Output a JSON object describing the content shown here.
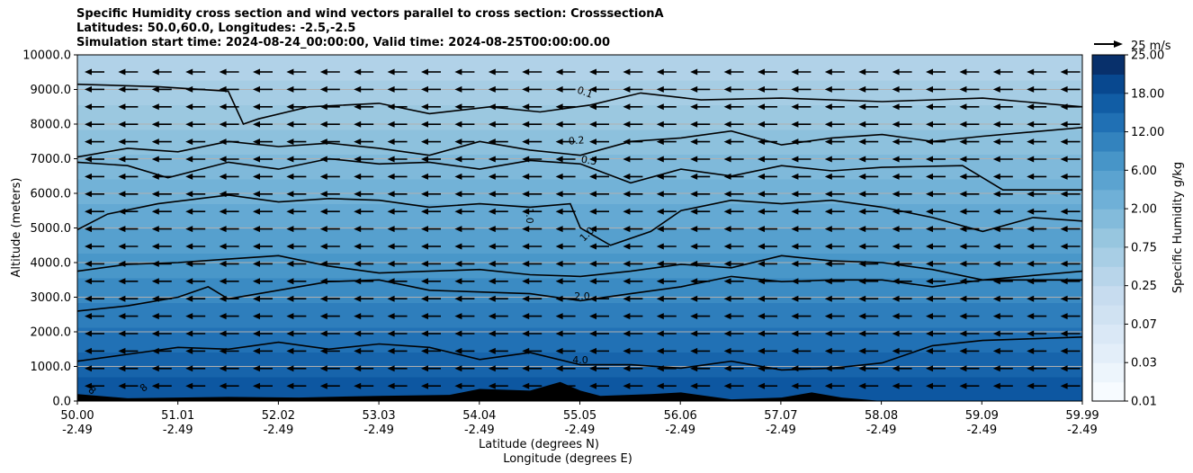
{
  "chart_data": {
    "type": "contour",
    "title_lines": [
      "Specific Humidity cross section and wind vectors parallel to cross section: CrosssectionA",
      "Latitudes: 50.0,60.0, Longitudes: -2.5,-2.5",
      "Simulation start time: 2024-08-24_00:00:00, Valid time: 2024-08-25T00:00:00.00"
    ],
    "ylabel": "Altitude (meters)",
    "xlabel_lat": "Latitude (degrees N)",
    "xlabel_lon": "Longitude (degrees E)",
    "ylim": [
      0,
      10000
    ],
    "xlim": [
      50.0,
      59.99
    ],
    "y_ticks": [
      "0.0",
      "1000.0",
      "2000.0",
      "3000.0",
      "4000.0",
      "5000.0",
      "6000.0",
      "7000.0",
      "8000.0",
      "9000.0",
      "10000.0"
    ],
    "x_ticks": [
      {
        "lat": "50.00",
        "lon": "-2.49"
      },
      {
        "lat": "51.01",
        "lon": "-2.49"
      },
      {
        "lat": "52.02",
        "lon": "-2.49"
      },
      {
        "lat": "53.03",
        "lon": "-2.49"
      },
      {
        "lat": "54.04",
        "lon": "-2.49"
      },
      {
        "lat": "55.05",
        "lon": "-2.49"
      },
      {
        "lat": "56.06",
        "lon": "-2.49"
      },
      {
        "lat": "57.07",
        "lon": "-2.49"
      },
      {
        "lat": "58.08",
        "lon": "-2.49"
      },
      {
        "lat": "59.09",
        "lon": "-2.49"
      },
      {
        "lat": "59.99",
        "lon": "-2.49"
      }
    ],
    "colorbar": {
      "label": "Specific Humidity g/kg",
      "tick_labels": [
        "0.01",
        "0.03",
        "0.07",
        "0.25",
        "0.75",
        "2.00",
        "6.00",
        "12.00",
        "18.00",
        "25.00"
      ],
      "n_levels": 18,
      "color_low": "#f7fbff",
      "color_high": "#08306b"
    },
    "contour_labels": [
      "0.1",
      "0.2",
      "0.5",
      "1.0",
      "1.0",
      "2.0",
      "4.0",
      "8",
      "8"
    ],
    "contours": [
      {
        "label": "0.1",
        "points": [
          [
            50.0,
            9150
          ],
          [
            50.8,
            9080
          ],
          [
            51.5,
            8950
          ],
          [
            51.65,
            8000
          ],
          [
            51.8,
            8150
          ],
          [
            52.3,
            8500
          ],
          [
            53.0,
            8600
          ],
          [
            53.5,
            8300
          ],
          [
            54.1,
            8500
          ],
          [
            54.6,
            8350
          ],
          [
            55.1,
            8550
          ],
          [
            55.6,
            8900
          ],
          [
            56.2,
            8700
          ],
          [
            57.0,
            8750
          ],
          [
            58.0,
            8650
          ],
          [
            59.0,
            8750
          ],
          [
            59.99,
            8500
          ]
        ]
      },
      {
        "label": "0.2",
        "points": [
          [
            50.0,
            7050
          ],
          [
            50.5,
            7300
          ],
          [
            51.0,
            7200
          ],
          [
            51.5,
            7500
          ],
          [
            52.0,
            7350
          ],
          [
            52.5,
            7450
          ],
          [
            53.0,
            7300
          ],
          [
            53.5,
            7100
          ],
          [
            54.0,
            7500
          ],
          [
            54.5,
            7250
          ],
          [
            55.0,
            7100
          ],
          [
            55.5,
            7500
          ],
          [
            56.0,
            7600
          ],
          [
            56.5,
            7800
          ],
          [
            57.0,
            7400
          ],
          [
            57.5,
            7600
          ],
          [
            58.0,
            7700
          ],
          [
            58.5,
            7500
          ],
          [
            59.0,
            7650
          ],
          [
            59.99,
            7900
          ]
        ]
      },
      {
        "label": "0.5",
        "points": [
          [
            50.0,
            6900
          ],
          [
            50.5,
            6800
          ],
          [
            50.9,
            6450
          ],
          [
            51.5,
            6900
          ],
          [
            52.0,
            6700
          ],
          [
            52.5,
            7000
          ],
          [
            53.0,
            6850
          ],
          [
            53.5,
            6900
          ],
          [
            54.0,
            6700
          ],
          [
            54.5,
            6950
          ],
          [
            55.0,
            6850
          ],
          [
            55.5,
            6300
          ],
          [
            56.0,
            6700
          ],
          [
            56.5,
            6500
          ],
          [
            57.0,
            6800
          ],
          [
            57.5,
            6650
          ],
          [
            58.0,
            6750
          ],
          [
            58.8,
            6800
          ],
          [
            59.2,
            6100
          ],
          [
            59.99,
            6100
          ]
        ]
      },
      {
        "label": "1.0",
        "points": [
          [
            50.0,
            4950
          ],
          [
            50.3,
            5400
          ],
          [
            50.8,
            5700
          ],
          [
            51.5,
            5950
          ],
          [
            52.0,
            5750
          ],
          [
            52.5,
            5850
          ],
          [
            53.0,
            5800
          ],
          [
            53.5,
            5600
          ],
          [
            54.0,
            5700
          ],
          [
            54.5,
            5600
          ],
          [
            54.9,
            5700
          ],
          [
            55.0,
            5000
          ],
          [
            55.3,
            4500
          ],
          [
            55.7,
            4900
          ],
          [
            56.0,
            5500
          ],
          [
            56.5,
            5800
          ],
          [
            57.0,
            5700
          ],
          [
            57.5,
            5800
          ],
          [
            58.0,
            5600
          ],
          [
            58.5,
            5300
          ],
          [
            59.0,
            4900
          ],
          [
            59.5,
            5300
          ],
          [
            59.99,
            5200
          ]
        ]
      },
      {
        "label": "2.0",
        "points": [
          [
            50.0,
            3750
          ],
          [
            50.5,
            3950
          ],
          [
            51.0,
            4000
          ],
          [
            51.5,
            4100
          ],
          [
            52.0,
            4200
          ],
          [
            52.5,
            3900
          ],
          [
            53.0,
            3700
          ],
          [
            53.5,
            3750
          ],
          [
            54.0,
            3800
          ],
          [
            54.5,
            3650
          ],
          [
            55.0,
            3600
          ],
          [
            55.5,
            3750
          ],
          [
            56.0,
            3950
          ],
          [
            56.5,
            3850
          ],
          [
            57.0,
            4200
          ],
          [
            57.5,
            4050
          ],
          [
            58.0,
            4000
          ],
          [
            58.5,
            3800
          ],
          [
            59.0,
            3500
          ],
          [
            59.99,
            3750
          ]
        ]
      },
      {
        "label": "2.0",
        "points": [
          [
            50.0,
            2600
          ],
          [
            50.5,
            2750
          ],
          [
            51.0,
            3000
          ],
          [
            51.3,
            3300
          ],
          [
            51.5,
            2950
          ],
          [
            52.0,
            3200
          ],
          [
            52.5,
            3450
          ],
          [
            53.0,
            3500
          ],
          [
            53.5,
            3200
          ],
          [
            54.0,
            3150
          ],
          [
            54.5,
            3100
          ],
          [
            55.0,
            2900
          ],
          [
            55.5,
            3100
          ],
          [
            56.0,
            3300
          ],
          [
            56.5,
            3600
          ],
          [
            57.0,
            3450
          ],
          [
            57.5,
            3500
          ],
          [
            58.0,
            3500
          ],
          [
            58.5,
            3300
          ],
          [
            59.0,
            3500
          ],
          [
            59.99,
            3500
          ]
        ]
      },
      {
        "label": "4.0",
        "points": [
          [
            50.0,
            1150
          ],
          [
            50.5,
            1350
          ],
          [
            51.0,
            1550
          ],
          [
            51.5,
            1500
          ],
          [
            52.0,
            1700
          ],
          [
            52.5,
            1500
          ],
          [
            53.0,
            1650
          ],
          [
            53.5,
            1550
          ],
          [
            54.0,
            1200
          ],
          [
            54.5,
            1400
          ],
          [
            55.0,
            1050
          ],
          [
            55.5,
            1050
          ],
          [
            56.0,
            950
          ],
          [
            56.5,
            1150
          ],
          [
            57.0,
            900
          ],
          [
            57.5,
            950
          ],
          [
            58.0,
            1100
          ],
          [
            58.5,
            1600
          ],
          [
            59.0,
            1750
          ],
          [
            59.5,
            1800
          ],
          [
            59.99,
            1850
          ]
        ]
      }
    ],
    "terrain_peaks": [
      [
        50.0,
        200
      ],
      [
        50.5,
        80
      ],
      [
        51.5,
        120
      ],
      [
        52.2,
        100
      ],
      [
        53.0,
        150
      ],
      [
        53.7,
        180
      ],
      [
        54.0,
        350
      ],
      [
        54.5,
        300
      ],
      [
        54.8,
        550
      ],
      [
        55.0,
        300
      ],
      [
        55.2,
        150
      ],
      [
        55.7,
        200
      ],
      [
        56.0,
        250
      ],
      [
        56.5,
        50
      ],
      [
        57.0,
        100
      ],
      [
        57.3,
        250
      ],
      [
        57.6,
        100
      ],
      [
        58.0,
        0
      ],
      [
        59.99,
        0
      ]
    ],
    "wind_vectors": {
      "direction": "westward",
      "reference_label": "25 m/s"
    }
  }
}
